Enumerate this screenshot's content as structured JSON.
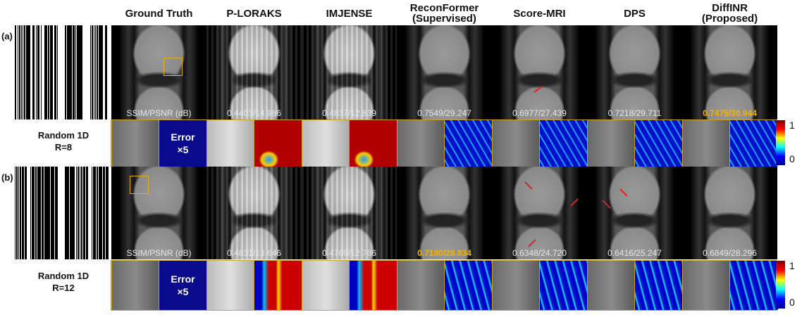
{
  "columns": [
    {
      "title": "Ground Truth",
      "subtitle": ""
    },
    {
      "title": "P-LORAKS",
      "subtitle": ""
    },
    {
      "title": "IMJENSE",
      "subtitle": ""
    },
    {
      "title": "ReconFormer",
      "subtitle": "(Supervised)"
    },
    {
      "title": "Score-MRI",
      "subtitle": ""
    },
    {
      "title": "DPS",
      "subtitle": ""
    },
    {
      "title": "DiffINR",
      "subtitle": "(Proposed)"
    }
  ],
  "panels": [
    {
      "label": "(a)",
      "setting": "Random 1D",
      "rate": "R=8",
      "metric_header": "SSIM/PSNR (dB)",
      "metrics": [
        "0.4403/14.986",
        "0.4837/12.839",
        "0.7549/29.247",
        "0.6977/27.439",
        "0.7218/29.711",
        "0.7475/30.944"
      ],
      "best_index": 5,
      "error_label": "Error",
      "error_scale": "×5"
    },
    {
      "label": "(b)",
      "setting": "Random 1D",
      "rate": "R=12",
      "metric_header": "SSIM/PSNR (dB)",
      "metrics": [
        "0.4831/13.646",
        "0.4769/12.766",
        "0.7180/28.834",
        "0.6348/24.720",
        "0.6416/25.247",
        "0.6849/28.296"
      ],
      "best_index": 2,
      "error_label": "Error",
      "error_scale": "×5"
    }
  ],
  "colorbar": {
    "max_label": "1",
    "min_label": "0"
  },
  "colors": {
    "highlight": "#f5b400",
    "arrow": "#e02020",
    "box": "#e0b020"
  }
}
